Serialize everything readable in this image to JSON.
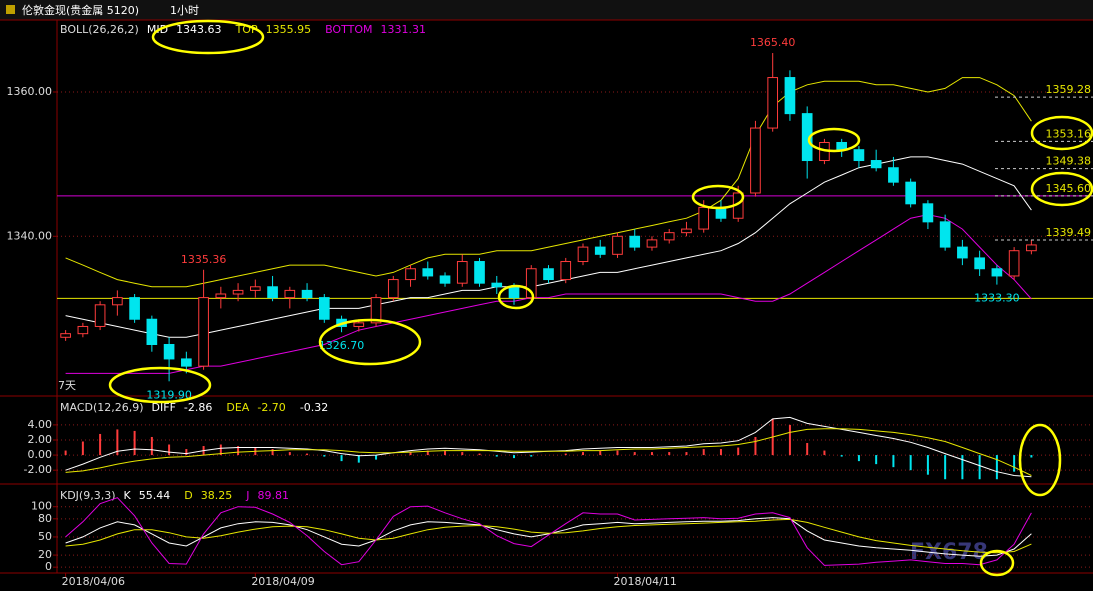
{
  "chart_data": [
    {
      "type": "candlestick",
      "title": "伦敦金现(贵金属 5120)",
      "period": "1小时",
      "indicator": "BOLL(26,26,2)",
      "range_label": "7天",
      "watermark": "FX678",
      "categories": [
        "2018/04/06",
        null,
        null,
        null,
        null,
        null,
        null,
        null,
        null,
        null,
        null,
        "2018/04/09",
        null,
        null,
        null,
        null,
        null,
        null,
        null,
        null,
        null,
        null,
        null,
        null,
        null,
        null,
        null,
        null,
        null,
        null,
        null,
        null,
        "2018/04/11",
        null,
        null,
        null,
        null,
        null,
        null,
        null,
        null,
        null,
        null,
        null,
        null,
        null,
        null,
        null,
        null,
        null,
        null,
        null,
        null,
        null,
        null,
        null,
        null
      ],
      "ohlc": [
        [
          1326,
          1327,
          1325.5,
          1326.5
        ],
        [
          1326.5,
          1328,
          1326,
          1327.5
        ],
        [
          1327.5,
          1331,
          1327,
          1330.5
        ],
        [
          1330.5,
          1332.5,
          1329,
          1331.5
        ],
        [
          1331.5,
          1332,
          1328,
          1328.5
        ],
        [
          1328.5,
          1329,
          1324,
          1325
        ],
        [
          1325,
          1326,
          1319.9,
          1323
        ],
        [
          1323,
          1324,
          1321,
          1322
        ],
        [
          1322,
          1335.36,
          1321.5,
          1331.5
        ],
        [
          1331.5,
          1333,
          1330,
          1332
        ],
        [
          1332,
          1333.5,
          1331,
          1332.5
        ],
        [
          1332.5,
          1334,
          1331.5,
          1333
        ],
        [
          1333,
          1334.5,
          1331,
          1331.5
        ],
        [
          1331.5,
          1333,
          1330,
          1332.5
        ],
        [
          1332.5,
          1333.5,
          1331,
          1331.5
        ],
        [
          1331.5,
          1332,
          1328,
          1328.5
        ],
        [
          1328.5,
          1329,
          1326.7,
          1327.5
        ],
        [
          1327.5,
          1328.5,
          1326.8,
          1328
        ],
        [
          1328,
          1332,
          1327.5,
          1331.5
        ],
        [
          1331.5,
          1334.5,
          1331,
          1334
        ],
        [
          1334,
          1336,
          1333,
          1335.5
        ],
        [
          1335.5,
          1336.5,
          1334,
          1334.5
        ],
        [
          1334.5,
          1335,
          1333,
          1333.5
        ],
        [
          1333.5,
          1337.5,
          1333,
          1336.5
        ],
        [
          1336.5,
          1337,
          1333,
          1333.5
        ],
        [
          1333.5,
          1334.5,
          1332,
          1333
        ],
        [
          1333,
          1333.5,
          1330.5,
          1331.5
        ],
        [
          1331.5,
          1336,
          1331,
          1335.5
        ],
        [
          1335.5,
          1336,
          1333.5,
          1334
        ],
        [
          1334,
          1337,
          1333.5,
          1336.5
        ],
        [
          1336.5,
          1339,
          1336,
          1338.5
        ],
        [
          1338.5,
          1339.5,
          1337,
          1337.5
        ],
        [
          1337.5,
          1340.5,
          1337,
          1340
        ],
        [
          1340,
          1341,
          1338,
          1338.5
        ],
        [
          1338.5,
          1340,
          1338,
          1339.5
        ],
        [
          1339.5,
          1341,
          1339,
          1340.5
        ],
        [
          1340.5,
          1342,
          1340,
          1341
        ],
        [
          1341,
          1345,
          1340.5,
          1344
        ],
        [
          1344,
          1345,
          1342,
          1342.5
        ],
        [
          1342.5,
          1347,
          1342,
          1346
        ],
        [
          1346,
          1356,
          1345.5,
          1355
        ],
        [
          1355,
          1365.4,
          1354.5,
          1362
        ],
        [
          1362,
          1363,
          1356,
          1357
        ],
        [
          1357,
          1358,
          1348,
          1350.5
        ],
        [
          1350.5,
          1353.5,
          1350,
          1353
        ],
        [
          1353,
          1353.5,
          1351,
          1352
        ],
        [
          1352,
          1352.5,
          1349.5,
          1350.5
        ],
        [
          1350.5,
          1352,
          1349,
          1349.5
        ],
        [
          1349.5,
          1351,
          1347,
          1347.5
        ],
        [
          1347.5,
          1348,
          1344,
          1344.5
        ],
        [
          1344.5,
          1345,
          1341,
          1342
        ],
        [
          1342,
          1343,
          1338,
          1338.5
        ],
        [
          1338.5,
          1339.5,
          1336,
          1337
        ],
        [
          1337,
          1338,
          1334.5,
          1335.5
        ],
        [
          1335.5,
          1336,
          1333.3,
          1334.5
        ],
        [
          1334.5,
          1338.5,
          1334,
          1338
        ],
        [
          1338,
          1339.5,
          1337.5,
          1338.8
        ]
      ],
      "up_color": "#ff3c3c",
      "down_color": "#00e5ee",
      "series": [
        {
          "name": "MID",
          "color": "#ffffff",
          "legend_value": "1343.63",
          "values": [
            1329,
            1328.5,
            1328,
            1327.5,
            1327,
            1326.5,
            1326,
            1326,
            1326.5,
            1327,
            1327.5,
            1328,
            1328.5,
            1329,
            1329.5,
            1330,
            1330,
            1330,
            1330.5,
            1331,
            1331.5,
            1331.5,
            1332,
            1332.5,
            1332.5,
            1333,
            1333,
            1333,
            1333.5,
            1334,
            1334.5,
            1335,
            1335,
            1335.5,
            1336,
            1336.5,
            1337,
            1337.5,
            1338,
            1339,
            1340.5,
            1342.5,
            1344.5,
            1346,
            1347.5,
            1348.5,
            1349.5,
            1350,
            1350.5,
            1351,
            1351,
            1350.5,
            1350,
            1349,
            1348,
            1347,
            1343.63
          ]
        },
        {
          "name": "TOP",
          "color": "#e6e600",
          "legend_value": "1355.95",
          "values": [
            1337,
            1336,
            1335,
            1334,
            1333.5,
            1333,
            1333,
            1333,
            1333.5,
            1334,
            1334.5,
            1335,
            1335.5,
            1336,
            1336,
            1336,
            1335.5,
            1335,
            1334.5,
            1335,
            1336,
            1337,
            1337.5,
            1337.5,
            1337.5,
            1338,
            1338,
            1338,
            1338.5,
            1339,
            1339.5,
            1340,
            1340.5,
            1341,
            1341.5,
            1342,
            1342.5,
            1343.5,
            1345,
            1348,
            1354,
            1358,
            1360,
            1361,
            1361.5,
            1361.5,
            1361.5,
            1361,
            1361,
            1360.5,
            1360,
            1360.5,
            1362,
            1362,
            1361,
            1359.5,
            1355.95
          ]
        },
        {
          "name": "BOTTOM",
          "color": "#e000e0",
          "legend_value": "1331.31",
          "values": [
            1321,
            1321,
            1321,
            1321,
            1321,
            1321,
            1321,
            1321.5,
            1322,
            1322,
            1322.5,
            1323,
            1323.5,
            1324,
            1324.5,
            1325,
            1326,
            1327,
            1327.5,
            1328,
            1328.5,
            1329,
            1329.5,
            1330,
            1330.5,
            1331,
            1331,
            1331.5,
            1331.5,
            1332,
            1332,
            1332,
            1332,
            1332,
            1332,
            1332,
            1332,
            1332,
            1332,
            1331.5,
            1331,
            1331,
            1332,
            1333.5,
            1335,
            1336.5,
            1338,
            1339.5,
            1341,
            1342.5,
            1343,
            1342.5,
            1341,
            1338.5,
            1336,
            1334,
            1331.31
          ]
        }
      ],
      "ylim": [
        1318,
        1369.7
      ],
      "yticks": [
        {
          "value": 1340,
          "label": "1340.00"
        },
        {
          "value": 1360,
          "label": "1360.00"
        }
      ],
      "grid": true,
      "hlines": [
        {
          "value": 1345.6,
          "color": "#d400d4"
        },
        {
          "value": 1331.4,
          "color": "#e6e600"
        }
      ],
      "levels": [
        1359.28,
        1353.16,
        1349.38,
        {
          "value": 1345.6,
          "label": "1345.60"
        },
        1339.49
      ],
      "annotations": [
        {
          "value": 1365.4,
          "label": "1365.40",
          "color": "#ff3c3c"
        },
        {
          "value": 1335.36,
          "label": "1335.36",
          "color": "#ff3c3c"
        },
        {
          "value": 1326.7,
          "label": "1326.70",
          "color": "#00e5ee"
        },
        {
          "value": 1319.9,
          "label": "1319.90",
          "color": "#00e5ee"
        },
        {
          "value": 1333.3,
          "label": "1333.30",
          "color": "#00e5ee"
        }
      ]
    },
    {
      "type": "bar",
      "title": "MACD(12,26,9)",
      "series": [
        {
          "name": "DIFF",
          "type": "line",
          "color": "#ffffff",
          "legend_value": "-2.86",
          "values": [
            -2,
            -1.2,
            -0.3,
            0.5,
            0.8,
            0.7,
            0.4,
            0.2,
            0.6,
            0.9,
            1.0,
            1.0,
            1.0,
            0.9,
            0.8,
            0.6,
            0.2,
            -0.1,
            0,
            0.3,
            0.6,
            0.8,
            0.9,
            0.8,
            0.7,
            0.5,
            0.3,
            0.4,
            0.5,
            0.6,
            0.8,
            0.9,
            1.0,
            1.0,
            1.0,
            1.1,
            1.2,
            1.5,
            1.6,
            1.9,
            3.0,
            4.8,
            5.0,
            4.2,
            3.8,
            3.4,
            3.0,
            2.6,
            2.2,
            1.7,
            1.0,
            0.2,
            -0.6,
            -1.4,
            -2.2,
            -2.7,
            -2.86
          ]
        },
        {
          "name": "DEA",
          "type": "line",
          "color": "#e6e600",
          "legend_value": "-2.70",
          "values": [
            -2.3,
            -2.1,
            -1.7,
            -1.2,
            -0.8,
            -0.5,
            -0.3,
            -0.2,
            0,
            0.2,
            0.4,
            0.5,
            0.6,
            0.7,
            0.7,
            0.7,
            0.6,
            0.4,
            0.3,
            0.3,
            0.4,
            0.5,
            0.6,
            0.6,
            0.6,
            0.6,
            0.5,
            0.5,
            0.5,
            0.5,
            0.6,
            0.6,
            0.7,
            0.8,
            0.8,
            0.9,
            1.0,
            1.1,
            1.2,
            1.4,
            1.8,
            2.4,
            3.0,
            3.4,
            3.5,
            3.5,
            3.4,
            3.2,
            3.0,
            2.7,
            2.3,
            1.8,
            1.0,
            0.2,
            -0.6,
            -1.6,
            -2.7
          ]
        },
        {
          "type": "bar",
          "color": "#ff3c3c",
          "negative_color": "#00e5ee",
          "legend_value": "-0.32",
          "values": [
            0.6,
            1.8,
            2.8,
            3.4,
            3.2,
            2.4,
            1.4,
            0.8,
            1.2,
            1.4,
            1.2,
            1.0,
            0.8,
            0.4,
            0.2,
            -0.2,
            -0.8,
            -1.0,
            -0.6,
            0,
            0.4,
            0.6,
            0.6,
            0.4,
            0.2,
            -0.2,
            -0.4,
            -0.2,
            0,
            0.2,
            0.4,
            0.6,
            0.6,
            0.4,
            0.4,
            0.4,
            0.4,
            0.8,
            0.8,
            1.0,
            2.4,
            4.8,
            4.0,
            1.6,
            0.6,
            -0.2,
            -0.8,
            -1.2,
            -1.6,
            -2.0,
            -2.6,
            -3.2,
            -3.2,
            -3.2,
            -3.2,
            -2.2,
            -0.32
          ]
        }
      ],
      "ylim": [
        -3.7,
        7.3
      ],
      "yticks": [
        {
          "value": 4,
          "label": "4.00"
        },
        {
          "value": 2,
          "label": "2.00"
        },
        {
          "value": 0,
          "label": "0.00"
        },
        {
          "value": -2,
          "label": "-2.00"
        }
      ],
      "grid": true
    },
    {
      "type": "line",
      "title": "KDJ(9,3,3)",
      "series": [
        {
          "name": "K",
          "color": "#ffffff",
          "legend_value": "55.44",
          "values": [
            40,
            50,
            65,
            75,
            70,
            55,
            40,
            35,
            50,
            65,
            72,
            75,
            74,
            70,
            62,
            50,
            38,
            35,
            45,
            60,
            70,
            75,
            74,
            72,
            70,
            62,
            55,
            50,
            55,
            62,
            70,
            72,
            74,
            72,
            73,
            74,
            75,
            76,
            76,
            77,
            80,
            82,
            80,
            60,
            45,
            40,
            35,
            32,
            30,
            28,
            25,
            22,
            20,
            18,
            20,
            30,
            55.44
          ]
        },
        {
          "name": "D",
          "color": "#e6e600",
          "legend_value": "38.25",
          "values": [
            35,
            38,
            45,
            55,
            62,
            62,
            57,
            50,
            48,
            52,
            58,
            63,
            67,
            68,
            67,
            62,
            55,
            48,
            45,
            48,
            55,
            62,
            66,
            68,
            69,
            67,
            63,
            58,
            56,
            57,
            60,
            64,
            67,
            69,
            70,
            71,
            72,
            73,
            74,
            75,
            76,
            78,
            79,
            74,
            66,
            58,
            50,
            44,
            40,
            36,
            33,
            30,
            27,
            25,
            24,
            26,
            38.25
          ]
        },
        {
          "name": "J",
          "color": "#e000e0",
          "legend_value": "89.81",
          "values": [
            50,
            75,
            105,
            115,
            85,
            40,
            6,
            5,
            55,
            90,
            100,
            99,
            88,
            74,
            52,
            26,
            4,
            9,
            45,
            84,
            100,
            101,
            90,
            80,
            72,
            52,
            39,
            34,
            53,
            72,
            90,
            88,
            88,
            78,
            79,
            80,
            81,
            82,
            80,
            81,
            88,
            90,
            82,
            32,
            3,
            4,
            5,
            8,
            10,
            12,
            9,
            6,
            6,
            4,
            12,
            38,
            89.81
          ]
        }
      ],
      "ylim": [
        -8,
        131
      ],
      "yticks": [
        100,
        80,
        50,
        20,
        0
      ],
      "grid": true
    }
  ]
}
